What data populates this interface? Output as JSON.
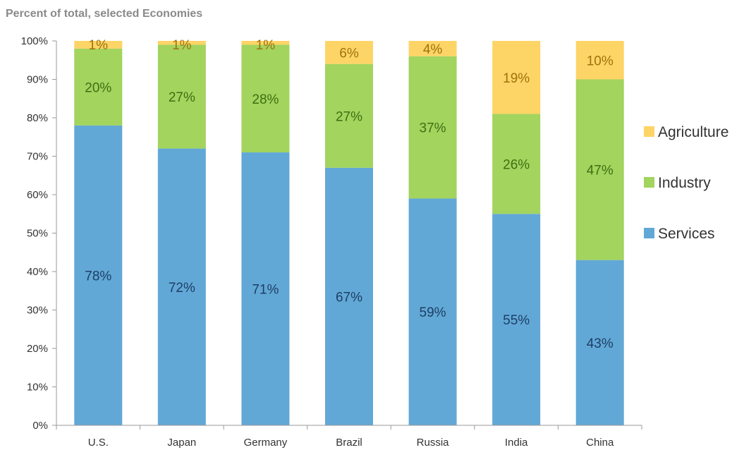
{
  "chart_data": {
    "type": "bar",
    "stacked": true,
    "subtitle": "Percent of total, selected Economies",
    "categories": [
      "U.S.",
      "Japan",
      "Germany",
      "Brazil",
      "Russia",
      "India",
      "China"
    ],
    "series": [
      {
        "name": "Services",
        "color": "#62a8d6",
        "label_color": "#1d3f66",
        "values": [
          78,
          72,
          71,
          67,
          59,
          55,
          43
        ],
        "labels": [
          "78%",
          "72%",
          "71%",
          "67%",
          "59%",
          "55%",
          "43%"
        ]
      },
      {
        "name": "Industry",
        "color": "#a2d45e",
        "label_color": "#3f6e12",
        "values": [
          20,
          27,
          28,
          27,
          37,
          26,
          47
        ],
        "labels": [
          "20%",
          "27%",
          "28%",
          "27%",
          "37%",
          "26%",
          "47%"
        ]
      },
      {
        "name": "Agriculture",
        "color": "#fdd466",
        "label_color": "#a0720a",
        "values": [
          1,
          1,
          1,
          6,
          4,
          19,
          10
        ],
        "labels": [
          "1%",
          "1%",
          "1%",
          "6%",
          "4%",
          "19%",
          "10%"
        ]
      }
    ],
    "ylim": [
      0,
      100
    ],
    "yticks": [
      "0%",
      "10%",
      "20%",
      "30%",
      "40%",
      "50%",
      "60%",
      "70%",
      "80%",
      "90%",
      "100%"
    ],
    "legend": {
      "position": "right",
      "order": [
        "Agriculture",
        "Industry",
        "Services"
      ]
    },
    "grid": false
  }
}
